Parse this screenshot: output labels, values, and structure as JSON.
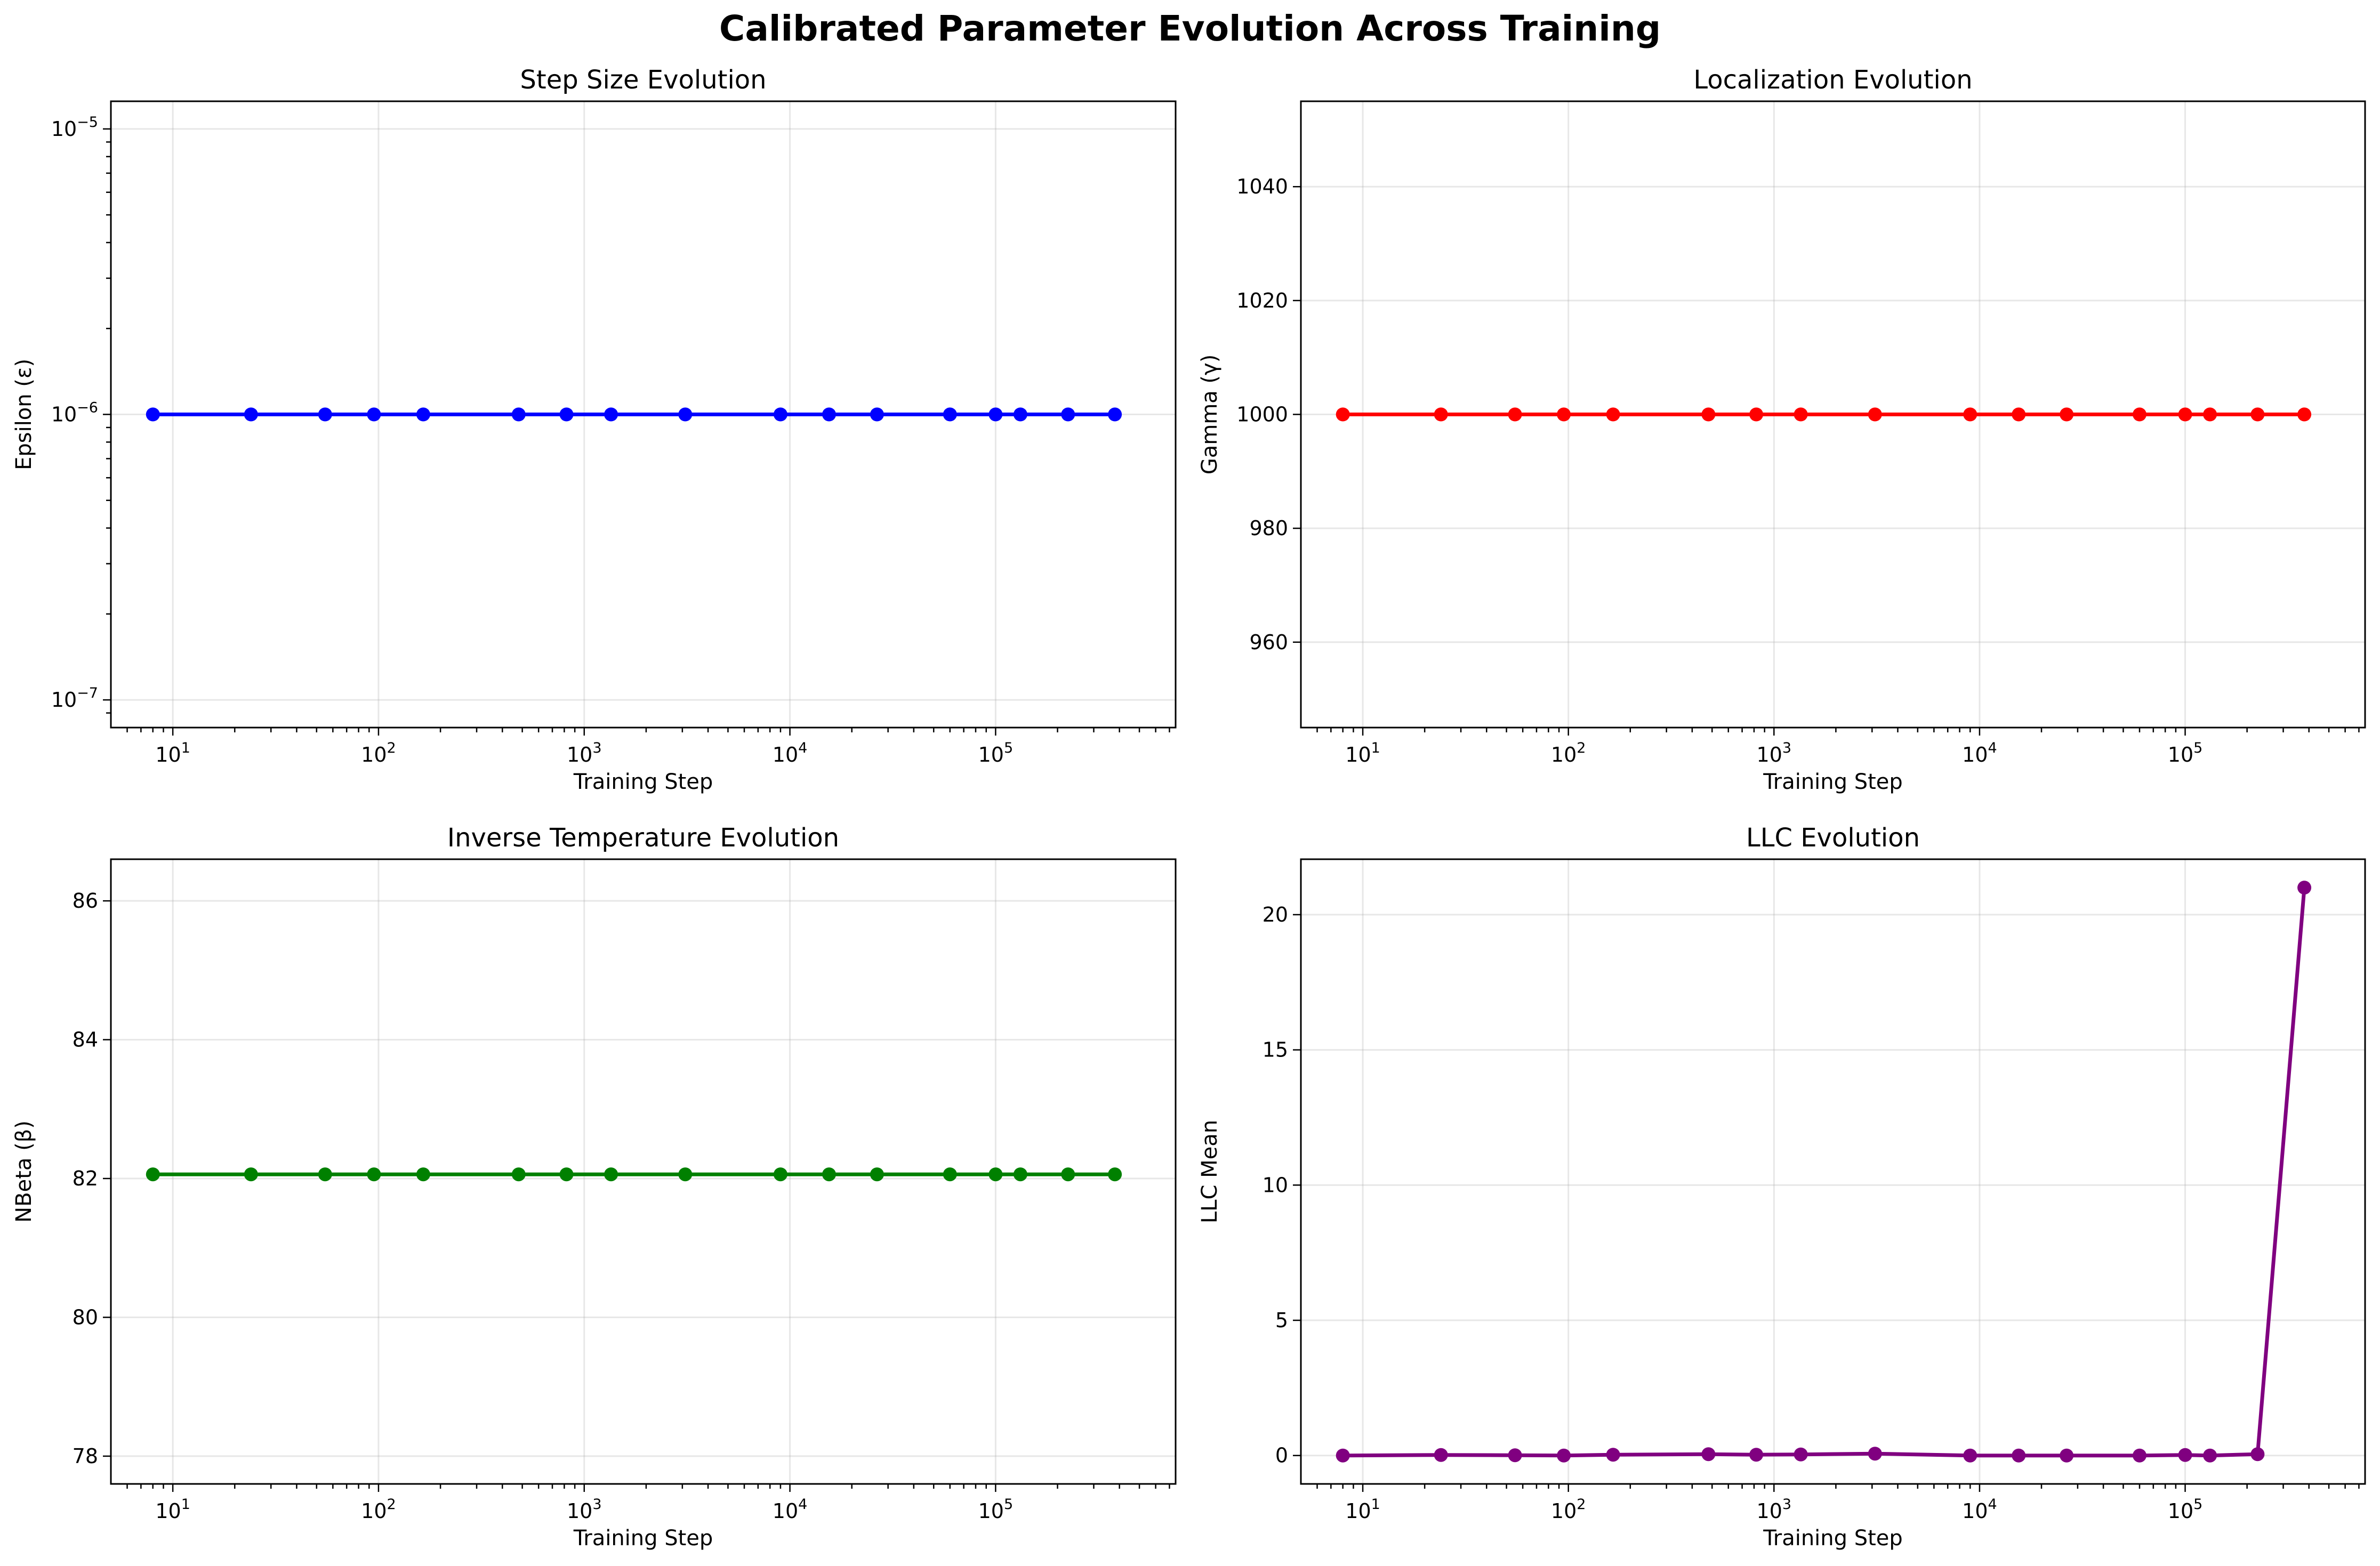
{
  "chart_data": {
    "type": "line",
    "suptitle": "Calibrated Parameter Evolution Across Training",
    "x": [
      8,
      24,
      55,
      95,
      165,
      480,
      820,
      1350,
      3100,
      9000,
      15500,
      26500,
      60000,
      100000,
      132000,
      225000,
      380000
    ],
    "panels": [
      {
        "title": "Step Size Evolution",
        "xlabel": "Training Step",
        "ylabel": "Epsilon (ε)",
        "xscale": "log",
        "yscale": "log",
        "xlim": [
          5,
          750000
        ],
        "ylim": [
          8e-08,
          1.25e-05
        ],
        "xticks": [
          {
            "value": 10,
            "base": "10",
            "exp": "1"
          },
          {
            "value": 100,
            "base": "10",
            "exp": "2"
          },
          {
            "value": 1000,
            "base": "10",
            "exp": "3"
          },
          {
            "value": 10000,
            "base": "10",
            "exp": "4"
          },
          {
            "value": 100000,
            "base": "10",
            "exp": "5"
          }
        ],
        "yticks": [
          {
            "value": 1e-07,
            "base": "10",
            "exp": "−7"
          },
          {
            "value": 1e-06,
            "base": "10",
            "exp": "−6"
          },
          {
            "value": 1e-05,
            "base": "10",
            "exp": "−5"
          }
        ],
        "color": "#0000ff",
        "grid": true,
        "values": [
          1e-06,
          1e-06,
          1e-06,
          1e-06,
          1e-06,
          1e-06,
          1e-06,
          1e-06,
          1e-06,
          1e-06,
          1e-06,
          1e-06,
          1e-06,
          1e-06,
          1e-06,
          1e-06,
          1e-06
        ]
      },
      {
        "title": "Localization Evolution",
        "xlabel": "Training Step",
        "ylabel": "Gamma (γ)",
        "xscale": "log",
        "yscale": "linear",
        "xlim": [
          5,
          750000
        ],
        "ylim": [
          945,
          1055
        ],
        "xticks": [
          {
            "value": 10,
            "base": "10",
            "exp": "1"
          },
          {
            "value": 100,
            "base": "10",
            "exp": "2"
          },
          {
            "value": 1000,
            "base": "10",
            "exp": "3"
          },
          {
            "value": 10000,
            "base": "10",
            "exp": "4"
          },
          {
            "value": 100000,
            "base": "10",
            "exp": "5"
          }
        ],
        "yticks": [
          {
            "value": 960,
            "label": "960"
          },
          {
            "value": 980,
            "label": "980"
          },
          {
            "value": 1000,
            "label": "1000"
          },
          {
            "value": 1020,
            "label": "1020"
          },
          {
            "value": 1040,
            "label": "1040"
          }
        ],
        "color": "#ff0000",
        "grid": true,
        "values": [
          1000,
          1000,
          1000,
          1000,
          1000,
          1000,
          1000,
          1000,
          1000,
          1000,
          1000,
          1000,
          1000,
          1000,
          1000,
          1000,
          1000
        ]
      },
      {
        "title": "Inverse Temperature Evolution",
        "xlabel": "Training Step",
        "ylabel": "NBeta (β)",
        "xscale": "log",
        "yscale": "linear",
        "xlim": [
          5,
          750000
        ],
        "ylim": [
          77.6,
          86.6
        ],
        "xticks": [
          {
            "value": 10,
            "base": "10",
            "exp": "1"
          },
          {
            "value": 100,
            "base": "10",
            "exp": "2"
          },
          {
            "value": 1000,
            "base": "10",
            "exp": "3"
          },
          {
            "value": 10000,
            "base": "10",
            "exp": "4"
          },
          {
            "value": 100000,
            "base": "10",
            "exp": "5"
          }
        ],
        "yticks": [
          {
            "value": 78,
            "label": "78"
          },
          {
            "value": 80,
            "label": "80"
          },
          {
            "value": 82,
            "label": "82"
          },
          {
            "value": 84,
            "label": "84"
          },
          {
            "value": 86,
            "label": "86"
          }
        ],
        "color": "#008000",
        "grid": true,
        "values": [
          82.06,
          82.06,
          82.06,
          82.06,
          82.06,
          82.06,
          82.06,
          82.06,
          82.06,
          82.06,
          82.06,
          82.06,
          82.06,
          82.06,
          82.06,
          82.06,
          82.06
        ]
      },
      {
        "title": "LLC Evolution",
        "xlabel": "Training Step",
        "ylabel": "LLC Mean",
        "xscale": "log",
        "yscale": "linear",
        "xlim": [
          5,
          750000
        ],
        "ylim": [
          -1.05,
          22.05
        ],
        "xticks": [
          {
            "value": 10,
            "base": "10",
            "exp": "1"
          },
          {
            "value": 100,
            "base": "10",
            "exp": "2"
          },
          {
            "value": 1000,
            "base": "10",
            "exp": "3"
          },
          {
            "value": 10000,
            "base": "10",
            "exp": "4"
          },
          {
            "value": 100000,
            "base": "10",
            "exp": "5"
          }
        ],
        "yticks": [
          {
            "value": 0,
            "label": "0"
          },
          {
            "value": 5,
            "label": "5"
          },
          {
            "value": 10,
            "label": "10"
          },
          {
            "value": 15,
            "label": "15"
          },
          {
            "value": 20,
            "label": "20"
          }
        ],
        "color": "#800080",
        "grid": true,
        "values": [
          0.0,
          0.02,
          0.01,
          0.0,
          0.03,
          0.05,
          0.03,
          0.04,
          0.07,
          0.0,
          0.0,
          0.0,
          0.0,
          0.02,
          0.0,
          0.05,
          21.0
        ]
      }
    ]
  }
}
